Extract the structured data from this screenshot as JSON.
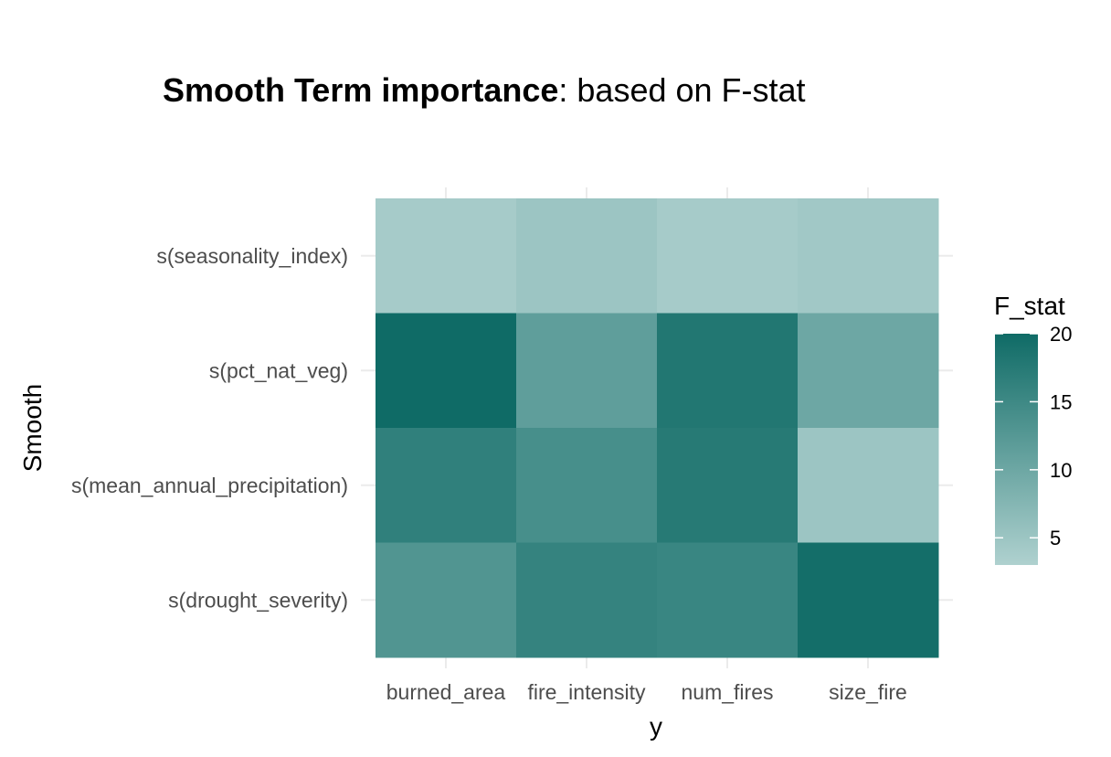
{
  "chart_data": {
    "type": "heatmap",
    "title_bold": "Smooth Term importance",
    "title_rest": ": based on F-stat",
    "xlabel": "y",
    "ylabel": "Smooth",
    "x_categories": [
      "burned_area",
      "fire_intensity",
      "num_fires",
      "size_fire"
    ],
    "y_categories": [
      "s(seasonality_index)",
      "s(pct_nat_veg)",
      "s(mean_annual_precipitation)",
      "s(drought_severity)"
    ],
    "values": [
      [
        4.0,
        5.0,
        4.0,
        4.5
      ],
      [
        20.0,
        11.5,
        18.0,
        10.0
      ],
      [
        16.5,
        14.0,
        17.5,
        5.0
      ],
      [
        13.0,
        16.0,
        15.5,
        19.5
      ]
    ],
    "legend": {
      "title": "F_stat",
      "ticks": [
        5,
        10,
        15,
        20
      ],
      "range": [
        3,
        20
      ],
      "color_low": "#afd1cf",
      "color_high": "#0f6b66"
    }
  }
}
